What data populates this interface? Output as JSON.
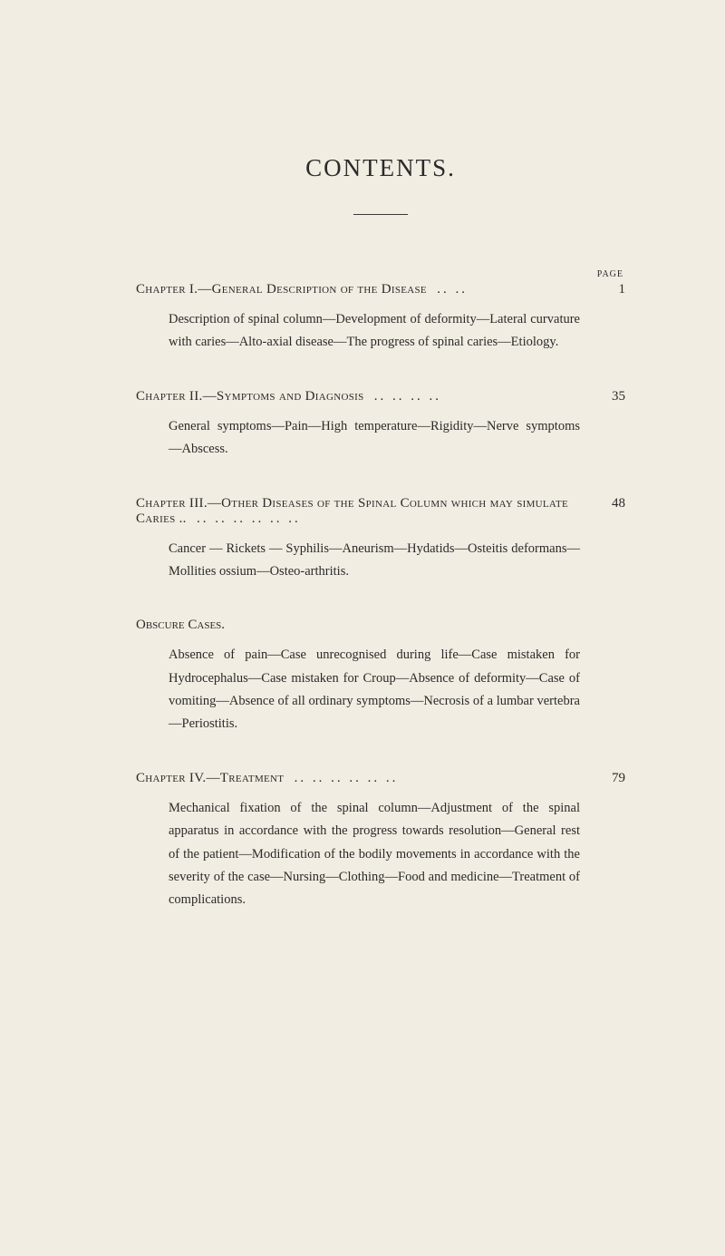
{
  "title": "CONTENTS.",
  "pageLabel": "PAGE",
  "chapters": [
    {
      "title": "Chapter I.—General Description of the Disease",
      "dots": ".. ..",
      "page": "1",
      "description": "Description of spinal column—Development of deformity—Lateral curvature with caries—Alto-axial disease—The progress of spinal caries—Etiology."
    },
    {
      "title": "Chapter II.—Symptoms and Diagnosis",
      "dots": ".. .. .. ..",
      "page": "35",
      "description": "General symptoms—Pain—High temperature—Rigidity—Nerve symptoms—Abscess."
    },
    {
      "title": "Chapter III.—Other Diseases of the Spinal Column which may simulate Caries ..",
      "dots": ".. .. .. .. .. ..",
      "page": "48",
      "description": "Cancer — Rickets — Syphilis—Aneurism—Hydatids—Osteitis deformans—Mollities ossium—Osteo-arthritis."
    }
  ],
  "obscure": {
    "title": "Obscure Cases.",
    "description": "Absence of pain—Case unrecognised during life—Case mistaken for Hydrocephalus—Case mistaken for Croup—Absence of deformity—Case of vomiting—Absence of all ordinary symptoms—Necrosis of a lumbar vertebra—Periostitis."
  },
  "chapter4": {
    "title": "Chapter IV.—Treatment",
    "dots": ".. .. .. .. .. ..",
    "page": "79",
    "description": "Mechanical fixation of the spinal column—Adjustment of the spinal apparatus in accordance with the progress towards resolution—General rest of the patient—Modification of the bodily movements in accordance with the severity of the case—Nursing—Clothing—Food and medicine—Treatment of complications."
  },
  "colors": {
    "background": "#f2ede2",
    "text": "#2a2a2a"
  },
  "typography": {
    "title_fontsize": 27,
    "body_fontsize": 15,
    "desc_fontsize": 14.5,
    "font_family": "Georgia, Times New Roman, serif"
  }
}
